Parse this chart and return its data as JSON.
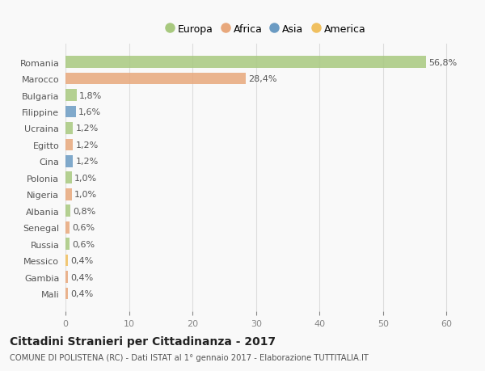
{
  "countries": [
    "Romania",
    "Marocco",
    "Bulgaria",
    "Filippine",
    "Ucraina",
    "Egitto",
    "Cina",
    "Polonia",
    "Nigeria",
    "Albania",
    "Senegal",
    "Russia",
    "Messico",
    "Gambia",
    "Mali"
  ],
  "values": [
    56.8,
    28.4,
    1.8,
    1.6,
    1.2,
    1.2,
    1.2,
    1.0,
    1.0,
    0.8,
    0.6,
    0.6,
    0.4,
    0.4,
    0.4
  ],
  "labels": [
    "56,8%",
    "28,4%",
    "1,8%",
    "1,6%",
    "1,2%",
    "1,2%",
    "1,2%",
    "1,0%",
    "1,0%",
    "0,8%",
    "0,6%",
    "0,6%",
    "0,4%",
    "0,4%",
    "0,4%"
  ],
  "colors": [
    "#a8c97f",
    "#e8a87c",
    "#a8c97f",
    "#6b9bc3",
    "#a8c97f",
    "#e8a87c",
    "#6b9bc3",
    "#a8c97f",
    "#e8a87c",
    "#a8c97f",
    "#e8a87c",
    "#a8c97f",
    "#f0c060",
    "#e8a87c",
    "#e8a87c"
  ],
  "legend": [
    {
      "label": "Europa",
      "color": "#a8c97f"
    },
    {
      "label": "Africa",
      "color": "#e8a87c"
    },
    {
      "label": "Asia",
      "color": "#6b9bc3"
    },
    {
      "label": "America",
      "color": "#f0c060"
    }
  ],
  "xlim": [
    0,
    63
  ],
  "xticks": [
    0,
    10,
    20,
    30,
    40,
    50,
    60
  ],
  "title": "Cittadini Stranieri per Cittadinanza - 2017",
  "subtitle": "COMUNE DI POLISTENA (RC) - Dati ISTAT al 1° gennaio 2017 - Elaborazione TUTTITALIA.IT",
  "bg_color": "#f9f9f9",
  "grid_color": "#dddddd",
  "bar_height": 0.72,
  "label_fontsize": 8,
  "tick_fontsize": 8
}
